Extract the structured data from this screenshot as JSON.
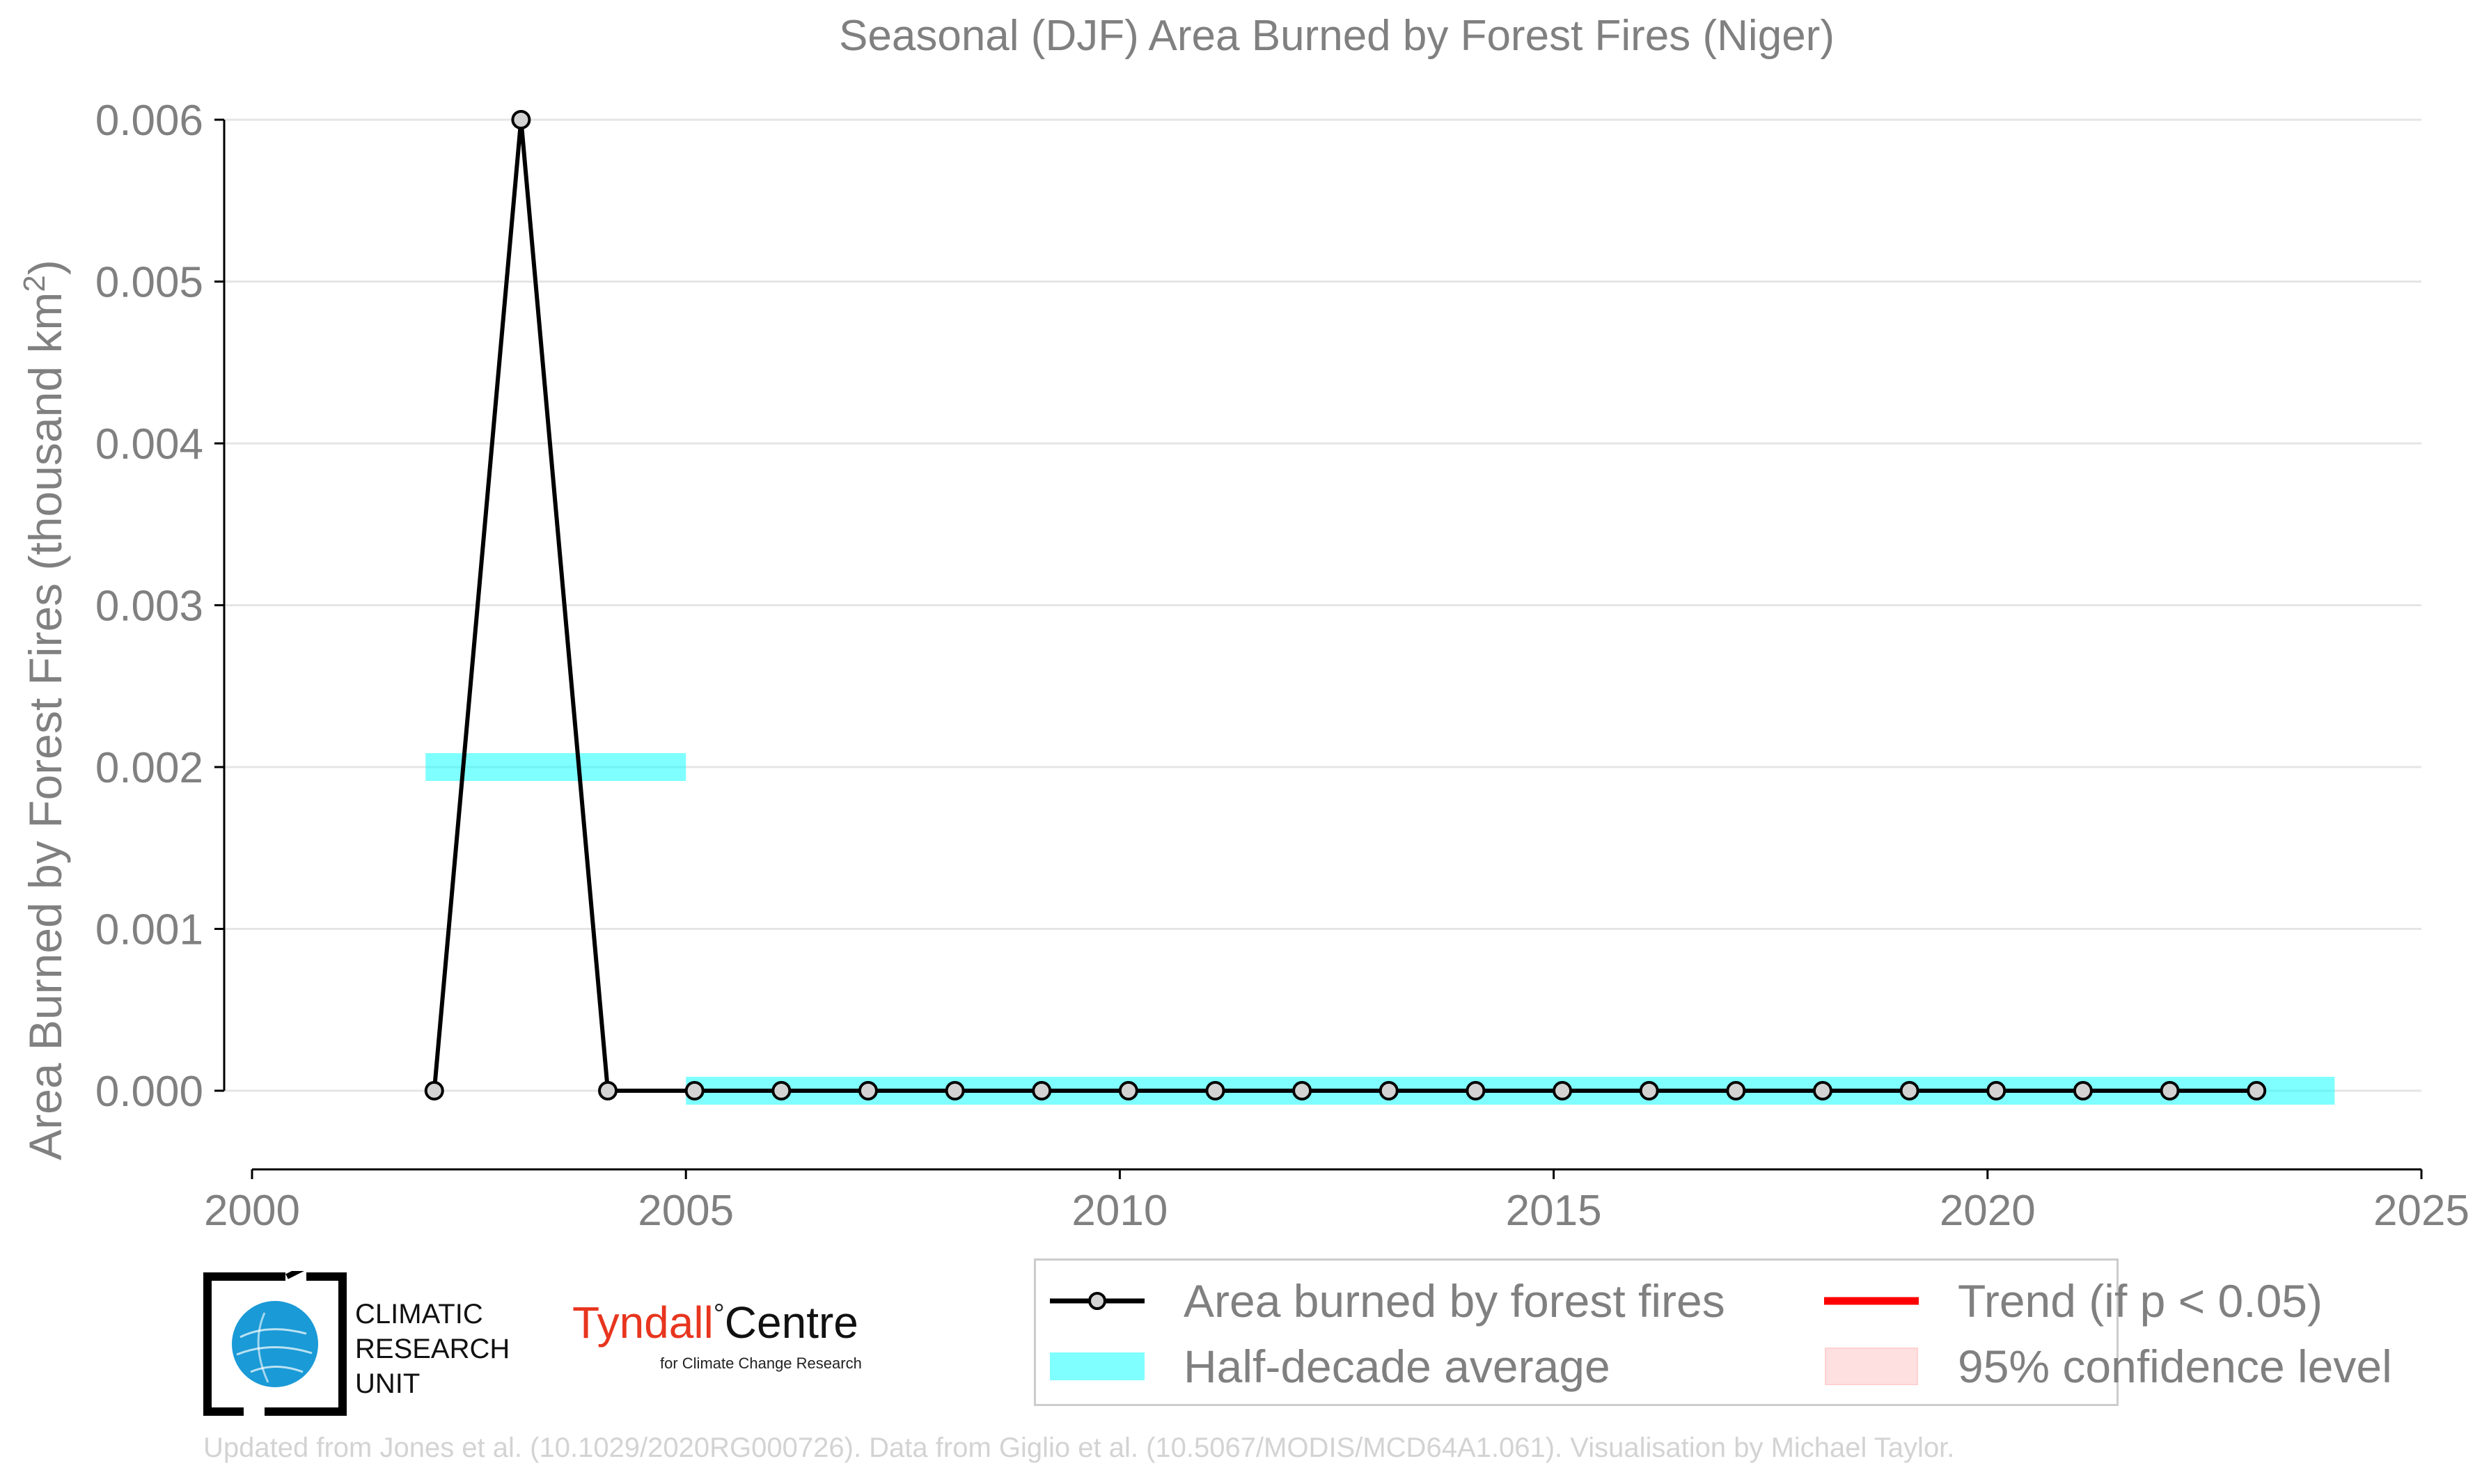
{
  "chart_data": {
    "type": "line",
    "title": "Seasonal (DJF) Area Burned by Forest Fires (Niger)",
    "ylabel_main": "Area Burned by Forest Fires (thousand km",
    "ylabel_sup": "2",
    "ylabel_tail": ")",
    "xlabel": "",
    "xlim": [
      2000,
      2025
    ],
    "ylim": [
      0,
      0.006
    ],
    "x_ticks": [
      2000,
      2005,
      2010,
      2015,
      2020,
      2025
    ],
    "x_tick_labels": [
      "2000",
      "2005",
      "2010",
      "2015",
      "2020",
      "2025"
    ],
    "y_ticks": [
      0,
      0.001,
      0.002,
      0.003,
      0.004,
      0.005,
      0.006
    ],
    "y_tick_labels": [
      "0.000",
      "0.001",
      "0.002",
      "0.003",
      "0.004",
      "0.005",
      "0.006"
    ],
    "grid": "horizontal",
    "series": [
      {
        "name": "Area burned by forest fires",
        "color": "#000000",
        "marker_fill": "#d3d3d3",
        "x": [
          2002,
          2003,
          2004,
          2005,
          2006,
          2007,
          2008,
          2009,
          2010,
          2011,
          2012,
          2013,
          2014,
          2015,
          2016,
          2017,
          2018,
          2019,
          2020,
          2021,
          2022,
          2023
        ],
        "y": [
          0,
          0.006,
          0,
          0,
          0,
          0,
          0,
          0,
          0,
          0,
          0,
          0,
          0,
          0,
          0,
          0,
          0,
          0,
          0,
          0,
          0,
          0
        ]
      }
    ],
    "half_decade_average": {
      "name": "Half-decade average",
      "color": "#00ffff",
      "segments": [
        {
          "x_start": 2002,
          "x_end": 2005,
          "y": 0.002
        },
        {
          "x_start": 2005,
          "x_end": 2024,
          "y": 0
        }
      ]
    },
    "legend": {
      "placement": "bottom-right",
      "entries": [
        {
          "label": "Area burned by forest fires",
          "kind": "line-marker",
          "color": "#000000"
        },
        {
          "label": "Trend (if p < 0.05)",
          "kind": "line",
          "color": "#ff0000"
        },
        {
          "label": "Half-decade average",
          "kind": "band",
          "color": "#00ffff"
        },
        {
          "label": "95% confidence level",
          "kind": "patch",
          "color": "#ffcccc"
        }
      ]
    }
  },
  "logos": {
    "cru": [
      "CLIMATIC",
      "RESEARCH",
      "UNIT"
    ],
    "tyndall_part1": "Tyndall",
    "tyndall_degree": "°",
    "tyndall_part2": "Centre",
    "tyndall_sub": "for Climate Change Research",
    "tyndall_color": "#e8351e"
  },
  "credit": "Updated from Jones et al. (10.1029/2020RG000726). Data from Giglio et al. (10.5067/MODIS/MCD64A1.061). Visualisation by Michael Taylor."
}
